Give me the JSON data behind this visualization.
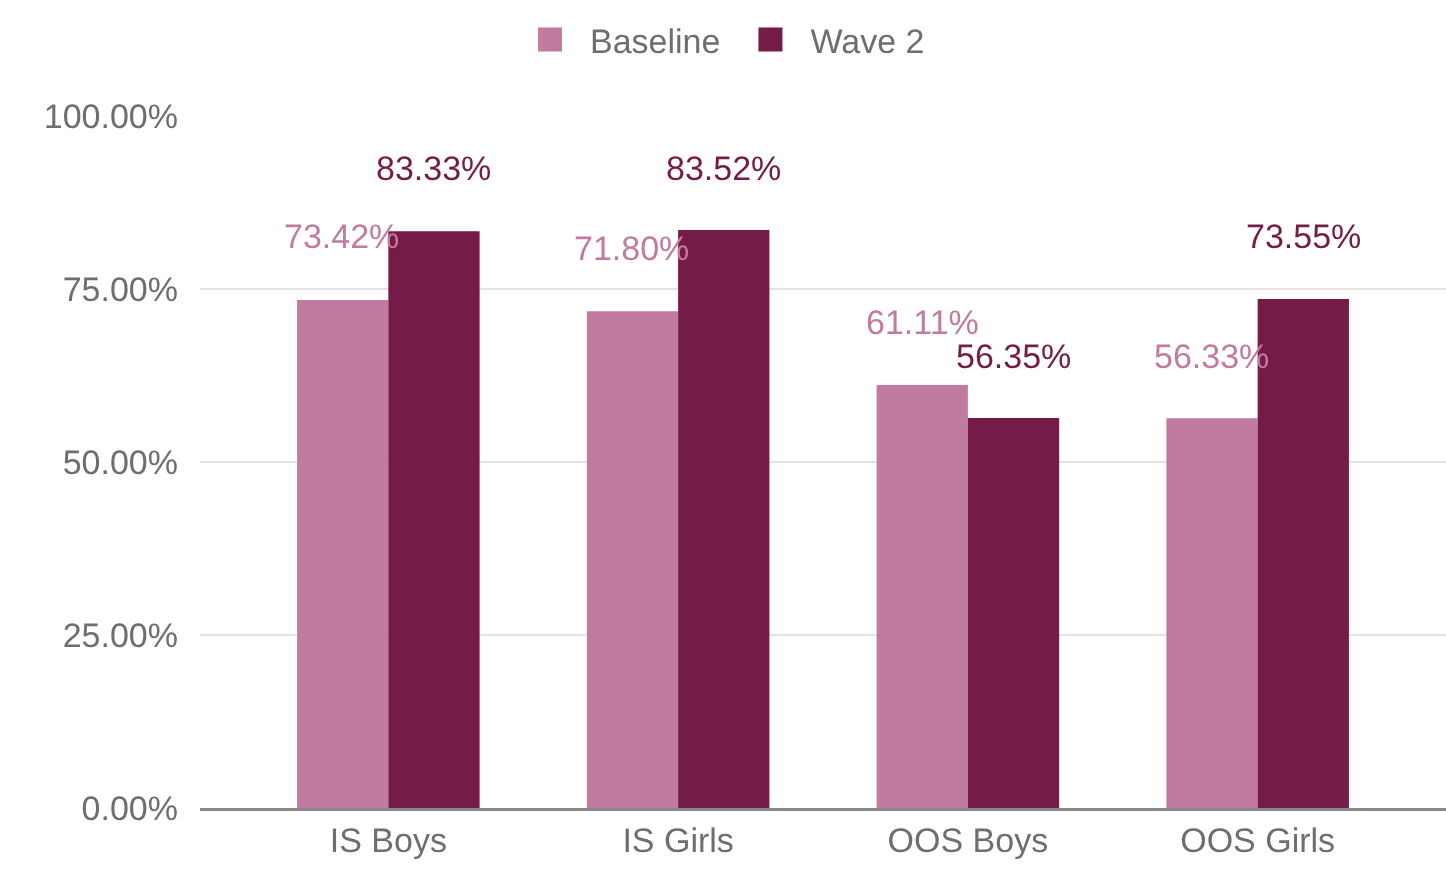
{
  "chart_data": {
    "type": "bar",
    "categories": [
      "IS Boys",
      "IS Girls",
      "OOS Boys",
      "OOS Girls"
    ],
    "series": [
      {
        "name": "Baseline",
        "color": "#c27ba0",
        "values": [
          73.42,
          71.8,
          61.11,
          56.33
        ],
        "value_labels": [
          "73.42%",
          "71.80%",
          "61.11%",
          "56.33%"
        ]
      },
      {
        "name": "Wave 2",
        "color": "#741b47",
        "values": [
          83.33,
          83.52,
          56.35,
          73.55
        ],
        "value_labels": [
          "83.33%",
          "83.52%",
          "56.35%",
          "73.55%"
        ]
      }
    ],
    "ylim": [
      0,
      100
    ],
    "yticks": [
      {
        "value": 0,
        "label": "0.00%"
      },
      {
        "value": 25,
        "label": "25.00%"
      },
      {
        "value": 50,
        "label": "50.00%"
      },
      {
        "value": 75,
        "label": "75.00%"
      },
      {
        "value": 100,
        "label": "100.00%"
      }
    ],
    "grid": "y",
    "legend": "top"
  }
}
